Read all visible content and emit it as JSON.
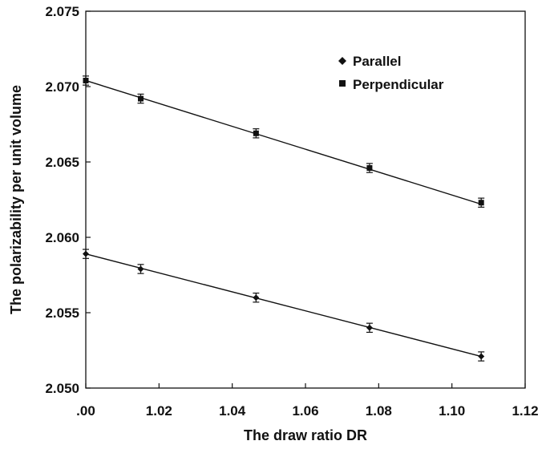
{
  "chart_data": {
    "type": "scatter",
    "xlabel": "The draw ratio DR",
    "ylabel": "The polarizability per unit volume",
    "xlim": [
      1.0,
      1.12
    ],
    "ylim": [
      2.05,
      2.075
    ],
    "x_ticks": [
      ".00",
      "1.02",
      "1.04",
      "1.06",
      "1.08",
      "1.10",
      "1.12"
    ],
    "y_ticks": [
      "2.050",
      "2.055",
      "2.060",
      "2.065",
      "2.070",
      "2.075"
    ],
    "grid": false,
    "legend_position": "top-right",
    "series": [
      {
        "name": "Parallel",
        "marker": "diamond",
        "x": [
          1.0,
          1.015,
          1.0465,
          1.0775,
          1.108
        ],
        "y": [
          2.0589,
          2.0579,
          2.056,
          2.054,
          2.0521
        ],
        "error": 0.0003,
        "fit_line": [
          [
            1.0,
            2.0589
          ],
          [
            1.108,
            2.0521
          ]
        ]
      },
      {
        "name": "Perpendicular",
        "marker": "square",
        "x": [
          1.0,
          1.015,
          1.0465,
          1.0775,
          1.108
        ],
        "y": [
          2.0704,
          2.0692,
          2.0669,
          2.0646,
          2.0623
        ],
        "error": 0.0003,
        "fit_line": [
          [
            1.0,
            2.0704
          ],
          [
            1.108,
            2.0622
          ]
        ]
      }
    ]
  }
}
